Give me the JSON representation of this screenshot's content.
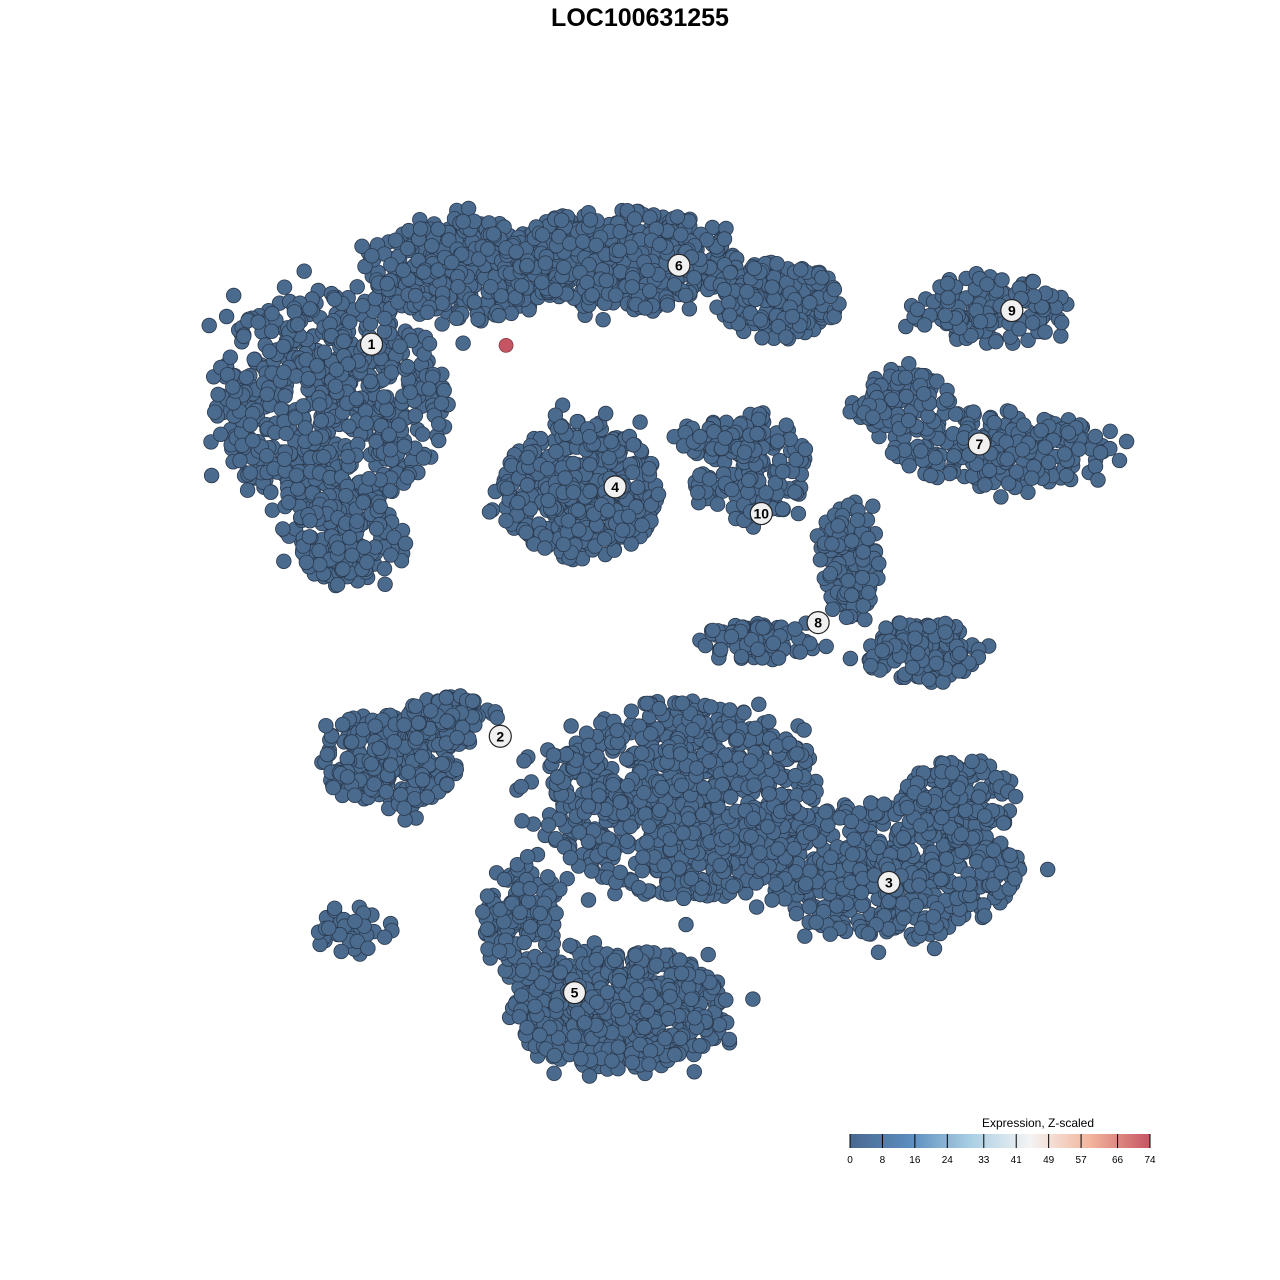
{
  "chart_data": {
    "type": "scatter",
    "title": "LOC100631255",
    "xlabel": "",
    "ylabel": "",
    "axes_visible": false,
    "grid": false,
    "point_color_default": "#4a6a8e",
    "point_stroke": "#2b3a4e",
    "clusters": [
      {
        "label": "1",
        "label_pos": [
          -25.3,
          25.5
        ],
        "regions": [
          {
            "center": [
              -28.9,
              20.7
            ],
            "spread": [
              10.3,
              9.5
            ],
            "n": 700
          },
          {
            "center": [
              -16.8,
              31.9
            ],
            "spread": [
              9.5,
              4.3
            ],
            "n": 400
          },
          {
            "center": [
              -27.2,
              8.6
            ],
            "spread": [
              5,
              4
            ],
            "n": 150
          }
        ]
      },
      {
        "label": "2",
        "label_pos": [
          -14.2,
          -8.3
        ],
        "regions": [
          {
            "center": [
              -23.7,
              -10.3
            ],
            "spread": [
              6,
              4.3
            ],
            "n": 250
          },
          {
            "center": [
              -18.5,
              -6.9
            ],
            "spread": [
              4.3,
              2.2
            ],
            "n": 100
          },
          {
            "center": [
              -26.7,
              -25
            ],
            "spread": [
              3.4,
              2.2
            ],
            "n": 40
          }
        ]
      },
      {
        "label": "3",
        "label_pos": [
          19.3,
          -20.9
        ],
        "regions": [
          {
            "center": [
              19.4,
              -19.8
            ],
            "spread": [
              11.2,
              6
            ],
            "n": 550
          },
          {
            "center": [
              25.4,
              -13.8
            ],
            "spread": [
              5.2,
              3.4
            ],
            "n": 150
          }
        ]
      },
      {
        "label": "4",
        "label_pos": [
          -4.3,
          13.2
        ],
        "regions": [
          {
            "center": [
              -7.3,
              12.9
            ],
            "spread": [
              6.9,
              6
            ],
            "n": 450
          }
        ]
      },
      {
        "label": "5",
        "label_pos": [
          -7.8,
          -30.4
        ],
        "regions": [
          {
            "center": [
              1.3,
              -13.8
            ],
            "spread": [
              12,
              8.6
            ],
            "n": 900
          },
          {
            "center": [
              -3.9,
              -31.9
            ],
            "spread": [
              9.5,
              5.2
            ],
            "n": 600
          },
          {
            "center": [
              -12.5,
              -24.1
            ],
            "spread": [
              3.4,
              5.2
            ],
            "n": 150
          }
        ]
      },
      {
        "label": "6",
        "label_pos": [
          1.2,
          32.3
        ],
        "regions": [
          {
            "center": [
              -3.9,
              32.8
            ],
            "spread": [
              10.3,
              4.3
            ],
            "n": 500
          },
          {
            "center": [
              9.9,
              29.3
            ],
            "spread": [
              5.2,
              3.4
            ],
            "n": 200
          }
        ]
      },
      {
        "label": "7",
        "label_pos": [
          27.1,
          16.9
        ],
        "regions": [
          {
            "center": [
              28.9,
              16.4
            ],
            "spread": [
              9.5,
              3.4
            ],
            "n": 250
          },
          {
            "center": [
              20.3,
              20.7
            ],
            "spread": [
              4.3,
              2.6
            ],
            "n": 100
          }
        ]
      },
      {
        "label": "8",
        "label_pos": [
          13.2,
          1.5
        ],
        "regions": [
          {
            "center": [
              15.9,
              6.9
            ],
            "spread": [
              2.6,
              5.2
            ],
            "n": 120
          },
          {
            "center": [
              22,
              -0.9
            ],
            "spread": [
              5.2,
              2.6
            ],
            "n": 150
          },
          {
            "center": [
              8.2,
              0
            ],
            "spread": [
              5.2,
              1.7
            ],
            "n": 80
          }
        ]
      },
      {
        "label": "9",
        "label_pos": [
          29.9,
          28.4
        ],
        "regions": [
          {
            "center": [
              28,
              28.4
            ],
            "spread": [
              6.9,
              3
            ],
            "n": 150
          }
        ]
      },
      {
        "label": "10",
        "label_pos": [
          8.3,
          10.9
        ],
        "regions": [
          {
            "center": [
              7.3,
              14.7
            ],
            "spread": [
              5,
              5
            ],
            "n": 150
          },
          {
            "center": [
              4.7,
              17.2
            ],
            "spread": [
              4.3,
              1.7
            ],
            "n": 60
          }
        ]
      }
    ],
    "highlighted_points": [
      {
        "x": -13.7,
        "y": 25.4,
        "value": 74
      }
    ],
    "legend": {
      "title": "Expression, Z-scaled",
      "placement": "bottom-right",
      "ticks": [
        "0",
        "8",
        "16",
        "24",
        "33",
        "41",
        "49",
        "57",
        "66",
        "74"
      ],
      "range": [
        0,
        74
      ],
      "colors": [
        "#4a6890",
        "#5b8dbf",
        "#a8cee3",
        "#f4f4f4",
        "#f3b59c",
        "#c65563"
      ]
    }
  }
}
